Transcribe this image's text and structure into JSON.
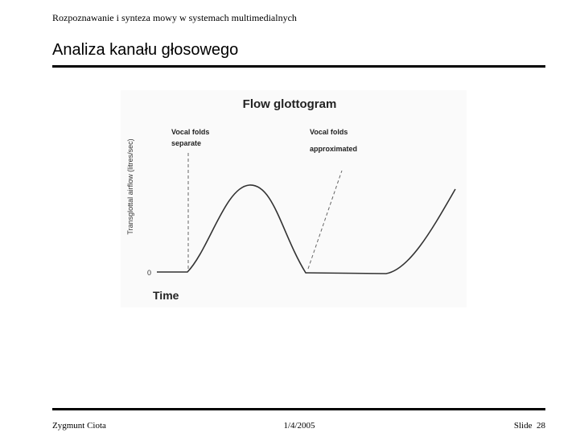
{
  "header": {
    "course": "Rozpoznawanie i synteza mowy w systemach multimedialnych",
    "title": "Analiza kanału głosowego"
  },
  "figure": {
    "title": "Flow glottogram",
    "y_label": "Transglottal airflow (litres/sec)",
    "zero": "0",
    "x_label": "Time",
    "annotations": [
      [
        "Vocal folds",
        "separate"
      ],
      [
        "Vocal folds",
        "approximated"
      ]
    ]
  },
  "footer": {
    "author": "Zygmunt Ciota",
    "date": "1/4/2005",
    "slide": "Slide  28"
  }
}
